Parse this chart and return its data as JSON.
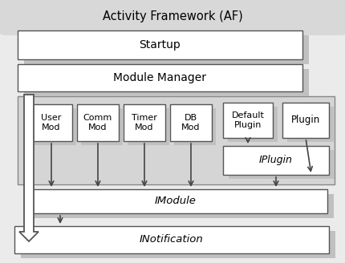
{
  "title": "Activity Framework (AF)",
  "box_face": "#ffffff",
  "box_edge": "#555555",
  "shadow_color": "#c0c0c0",
  "outer_bg": "#e8e8e8",
  "outer_edge": "#666666",
  "panel_bg": "#d0d0d0",
  "panel_edge": "#888888",
  "startup_label": "Startup",
  "mm_label": "Module Manager",
  "small_boxes": [
    {
      "label": "User\nMod"
    },
    {
      "label": "Comm\nMod"
    },
    {
      "label": "Timer\nMod"
    },
    {
      "label": "DB\nMod"
    }
  ],
  "dp_label": "Default\nPlugin",
  "plugin_label": "Plugin",
  "iplugin_label": "IPlugin",
  "imodule_label": "IModule",
  "inotif_label": "INotification",
  "arrow_color": "#444444",
  "big_arrow_color": "#888888"
}
